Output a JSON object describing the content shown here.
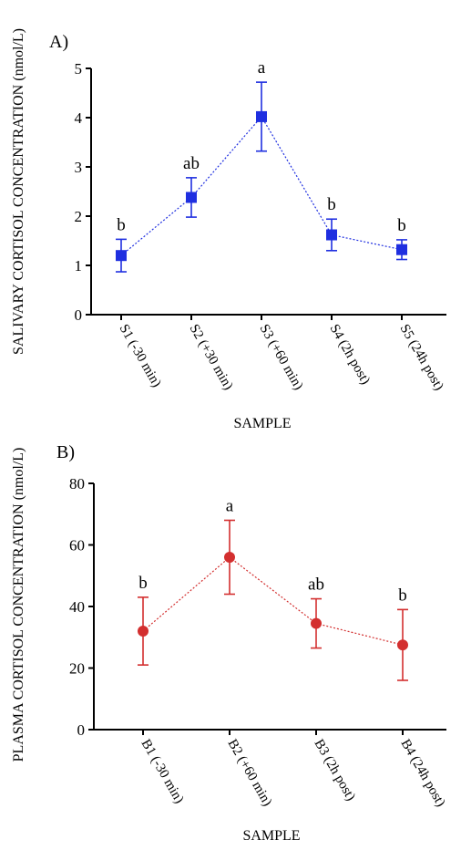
{
  "chart_data": [
    {
      "type": "line",
      "panel_label": "A)",
      "ylabel": "SALIVARY CORTISOL CONCENTRATION (nmol/L)",
      "xlabel": "SAMPLE",
      "ylim": [
        0,
        5
      ],
      "yticks": [
        "0",
        "1",
        "2",
        "3",
        "4",
        "5"
      ],
      "categories": [
        "S1 (-30 min)",
        "S2 (+30 min)",
        "S3 (+60 min)",
        "S4 (2h post)",
        "S5 (24h post)"
      ],
      "series": [
        {
          "values": [
            1.2,
            2.38,
            4.02,
            1.62,
            1.32
          ],
          "errors": [
            0.33,
            0.4,
            0.7,
            0.32,
            0.2
          ],
          "marker": "square",
          "color": "#1f2fe0"
        }
      ],
      "annotations": [
        "b",
        "ab",
        "a",
        "b",
        "b"
      ],
      "grid": false
    },
    {
      "type": "line",
      "panel_label": "B)",
      "ylabel": "PLASMA CORTISOL CONCENTRATION (nmol/L)",
      "xlabel": "SAMPLE",
      "ylim": [
        0,
        80
      ],
      "yticks": [
        "0",
        "20",
        "40",
        "60",
        "80"
      ],
      "categories": [
        "B1 (-30 min)",
        "B2 (+60 min)",
        "B3 (2h post)",
        "B4 (24h post)"
      ],
      "series": [
        {
          "values": [
            32,
            56,
            34.5,
            27.5
          ],
          "errors": [
            11,
            12,
            8,
            11.5
          ],
          "marker": "circle",
          "color": "#d32f2f"
        }
      ],
      "annotations": [
        "b",
        "a",
        "ab",
        "b"
      ],
      "grid": false
    }
  ]
}
